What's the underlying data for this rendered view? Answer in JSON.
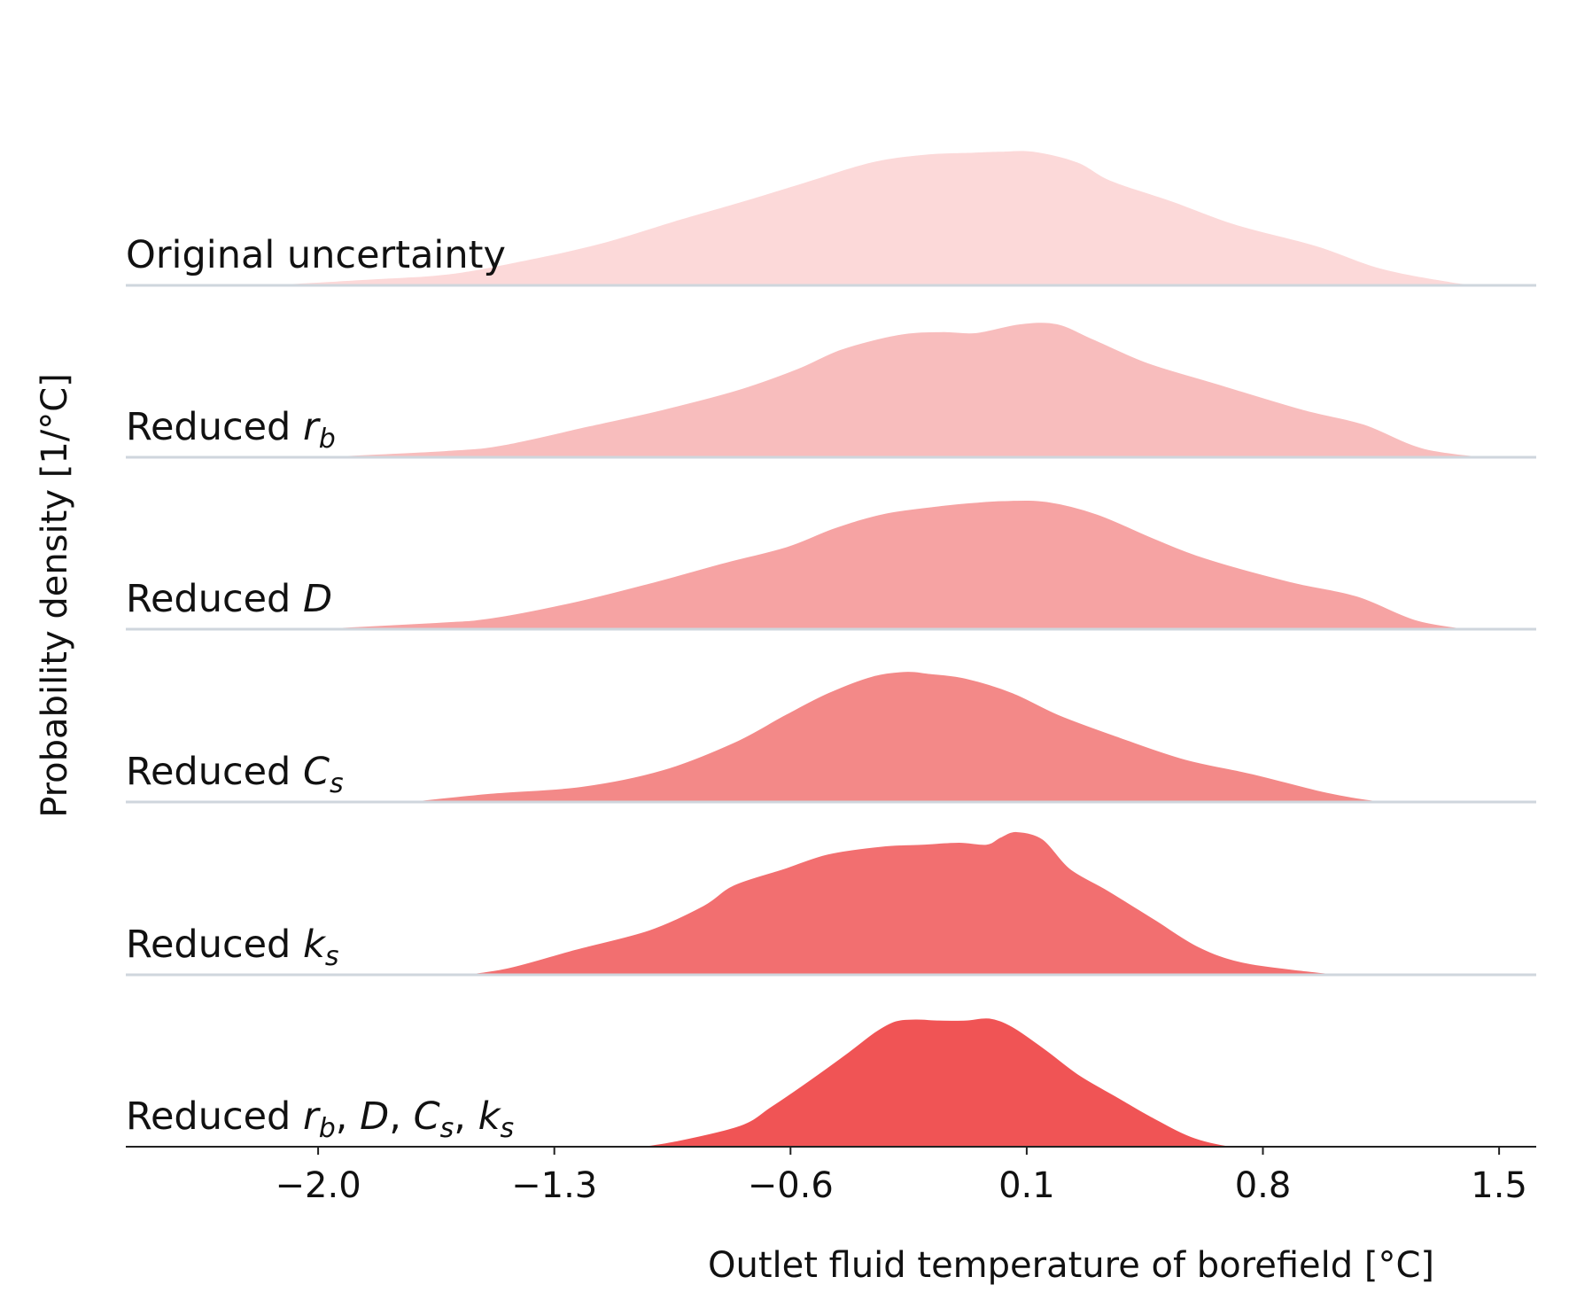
{
  "chart_data": {
    "type": "area",
    "subtype": "ridgeline",
    "xlabel": "Outlet fluid temperature of borefield [°C]",
    "ylabel": "Probability density [1/°C]",
    "xlim": [
      -2.57,
      1.61
    ],
    "x_ticks": [
      -2.0,
      -1.3,
      -0.6,
      0.1,
      0.8,
      1.5
    ],
    "x_tick_labels": [
      "−2.0",
      "−1.3",
      "−0.6",
      "0.1",
      "0.8",
      "1.5"
    ],
    "grid": false,
    "legend": "none",
    "colors": [
      "#fcd9d9",
      "#f8bdbd",
      "#f6a3a3",
      "#f38988",
      "#f26f70",
      "#f05455"
    ],
    "series": [
      {
        "label_plain": "Original uncertainty",
        "label_parts": [
          {
            "t": "Original uncertainty",
            "it": false
          }
        ],
        "points": [
          [
            -2.15,
            0
          ],
          [
            -1.84,
            0.06
          ],
          [
            -1.62,
            0.11
          ],
          [
            -1.42,
            0.23
          ],
          [
            -1.17,
            0.42
          ],
          [
            -0.93,
            0.67
          ],
          [
            -0.75,
            0.85
          ],
          [
            -0.56,
            1.05
          ],
          [
            -0.36,
            1.26
          ],
          [
            -0.2,
            1.34
          ],
          [
            -0.06,
            1.36
          ],
          [
            0.02,
            1.37
          ],
          [
            0.12,
            1.37
          ],
          [
            0.25,
            1.26
          ],
          [
            0.35,
            1.07
          ],
          [
            0.53,
            0.86
          ],
          [
            0.72,
            0.62
          ],
          [
            0.96,
            0.4
          ],
          [
            1.15,
            0.17
          ],
          [
            1.36,
            0.03
          ],
          [
            1.45,
            0
          ]
        ]
      },
      {
        "label_plain": "Reduced r_b",
        "label_parts": [
          {
            "t": "Reduced ",
            "it": false
          },
          {
            "t": "r",
            "it": true
          },
          {
            "t": "b",
            "it": true,
            "sub": true
          }
        ],
        "points": [
          [
            -2.1,
            0
          ],
          [
            -1.62,
            0.08
          ],
          [
            -1.45,
            0.14
          ],
          [
            -1.2,
            0.33
          ],
          [
            -0.98,
            0.5
          ],
          [
            -0.76,
            0.7
          ],
          [
            -0.58,
            0.92
          ],
          [
            -0.45,
            1.12
          ],
          [
            -0.28,
            1.27
          ],
          [
            -0.15,
            1.3
          ],
          [
            -0.05,
            1.29
          ],
          [
            0.08,
            1.38
          ],
          [
            0.19,
            1.38
          ],
          [
            0.3,
            1.22
          ],
          [
            0.46,
            0.98
          ],
          [
            0.66,
            0.77
          ],
          [
            0.92,
            0.5
          ],
          [
            1.1,
            0.35
          ],
          [
            1.28,
            0.1
          ],
          [
            1.5,
            0
          ]
        ]
      },
      {
        "label_plain": "Reduced D",
        "label_parts": [
          {
            "t": "Reduced ",
            "it": false
          },
          {
            "t": "D",
            "it": true
          }
        ],
        "points": [
          [
            -2.1,
            0
          ],
          [
            -1.65,
            0.08
          ],
          [
            -1.48,
            0.13
          ],
          [
            -1.23,
            0.3
          ],
          [
            -1.0,
            0.5
          ],
          [
            -0.8,
            0.69
          ],
          [
            -0.61,
            0.86
          ],
          [
            -0.47,
            1.05
          ],
          [
            -0.32,
            1.2
          ],
          [
            -0.15,
            1.28
          ],
          [
            -0.06,
            1.31
          ],
          [
            0.03,
            1.33
          ],
          [
            0.16,
            1.32
          ],
          [
            0.31,
            1.19
          ],
          [
            0.48,
            0.94
          ],
          [
            0.63,
            0.74
          ],
          [
            0.88,
            0.5
          ],
          [
            1.08,
            0.35
          ],
          [
            1.26,
            0.1
          ],
          [
            1.44,
            0
          ]
        ]
      },
      {
        "label_plain": "Reduced C_s",
        "label_parts": [
          {
            "t": "Reduced ",
            "it": false
          },
          {
            "t": "C",
            "it": true
          },
          {
            "t": "s",
            "it": true,
            "sub": true
          }
        ],
        "points": [
          [
            -1.77,
            0
          ],
          [
            -1.49,
            0.1
          ],
          [
            -1.22,
            0.17
          ],
          [
            -0.98,
            0.34
          ],
          [
            -0.77,
            0.62
          ],
          [
            -0.62,
            0.9
          ],
          [
            -0.49,
            1.13
          ],
          [
            -0.36,
            1.3
          ],
          [
            -0.26,
            1.35
          ],
          [
            -0.19,
            1.33
          ],
          [
            -0.08,
            1.28
          ],
          [
            0.06,
            1.13
          ],
          [
            0.2,
            0.9
          ],
          [
            0.38,
            0.67
          ],
          [
            0.57,
            0.45
          ],
          [
            0.77,
            0.3
          ],
          [
            0.99,
            0.11
          ],
          [
            1.15,
            0.02
          ],
          [
            1.3,
            0
          ]
        ]
      },
      {
        "label_plain": "Reduced k_s",
        "label_parts": [
          {
            "t": "Reduced ",
            "it": false
          },
          {
            "t": "k",
            "it": true
          },
          {
            "t": "s",
            "it": true,
            "sub": true
          }
        ],
        "points": [
          [
            -1.6,
            0
          ],
          [
            -1.44,
            0.08
          ],
          [
            -1.24,
            0.27
          ],
          [
            -1.02,
            0.47
          ],
          [
            -0.86,
            0.72
          ],
          [
            -0.77,
            0.93
          ],
          [
            -0.62,
            1.1
          ],
          [
            -0.49,
            1.25
          ],
          [
            -0.33,
            1.33
          ],
          [
            -0.21,
            1.35
          ],
          [
            -0.1,
            1.37
          ],
          [
            -0.02,
            1.35
          ],
          [
            0.02,
            1.42
          ],
          [
            0.07,
            1.48
          ],
          [
            0.15,
            1.4
          ],
          [
            0.23,
            1.1
          ],
          [
            0.34,
            0.88
          ],
          [
            0.48,
            0.58
          ],
          [
            0.61,
            0.3
          ],
          [
            0.74,
            0.14
          ],
          [
            0.93,
            0.05
          ],
          [
            1.08,
            0
          ]
        ]
      },
      {
        "label_plain": "Reduced r_b, D, C_s, k_s",
        "label_parts": [
          {
            "t": "Reduced ",
            "it": false
          },
          {
            "t": "r",
            "it": true
          },
          {
            "t": "b",
            "it": true,
            "sub": true
          },
          {
            "t": ", ",
            "it": false
          },
          {
            "t": "D",
            "it": true
          },
          {
            "t": ", ",
            "it": false
          },
          {
            "t": "C",
            "it": true
          },
          {
            "t": "s",
            "it": true,
            "sub": true
          },
          {
            "t": ", ",
            "it": false
          },
          {
            "t": "k",
            "it": true
          },
          {
            "t": "s",
            "it": true,
            "sub": true
          }
        ],
        "points": [
          [
            -1.07,
            0
          ],
          [
            -0.94,
            0.07
          ],
          [
            -0.75,
            0.23
          ],
          [
            -0.66,
            0.42
          ],
          [
            -0.55,
            0.68
          ],
          [
            -0.43,
            0.98
          ],
          [
            -0.35,
            1.19
          ],
          [
            -0.29,
            1.3
          ],
          [
            -0.23,
            1.32
          ],
          [
            -0.16,
            1.31
          ],
          [
            -0.08,
            1.31
          ],
          [
            -0.01,
            1.33
          ],
          [
            0.06,
            1.24
          ],
          [
            0.16,
            1.0
          ],
          [
            0.26,
            0.74
          ],
          [
            0.37,
            0.52
          ],
          [
            0.47,
            0.32
          ],
          [
            0.6,
            0.1
          ],
          [
            0.74,
            0
          ],
          [
            0.85,
            0
          ]
        ]
      }
    ]
  }
}
